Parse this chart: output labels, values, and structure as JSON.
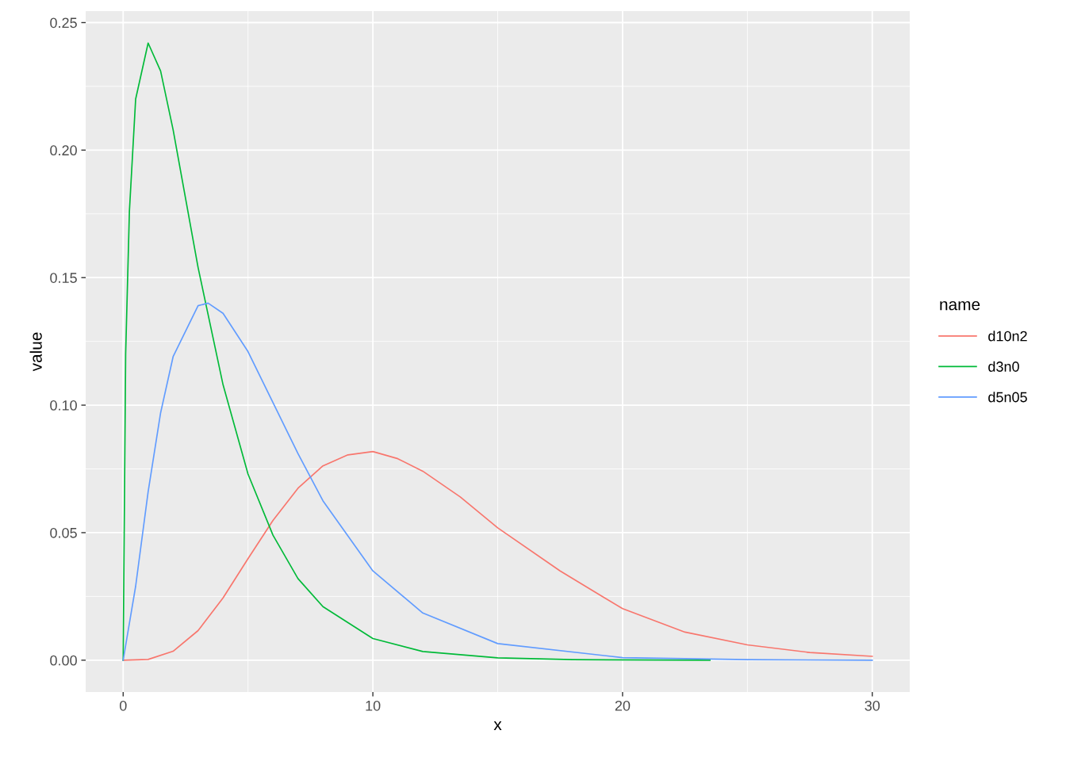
{
  "chart_data": {
    "type": "line",
    "xlabel": "x",
    "ylabel": "value",
    "legend_title": "name",
    "legend": "right",
    "grid": true,
    "xlim": [
      -1.5,
      31.5
    ],
    "ylim": [
      -0.0125,
      0.2545
    ],
    "xticks": [
      0,
      10,
      20,
      30
    ],
    "yticks": [
      {
        "value": 0,
        "label": "0.00"
      },
      {
        "value": 0.05,
        "label": "0.05"
      },
      {
        "value": 0.1,
        "label": "0.10"
      },
      {
        "value": 0.15,
        "label": "0.15"
      },
      {
        "value": 0.2,
        "label": "0.20"
      },
      {
        "value": 0.25,
        "label": "0.25"
      }
    ],
    "series": [
      {
        "name": "d10n2",
        "color": "#f8766d",
        "x": [
          0,
          1,
          2,
          3,
          4,
          5,
          6,
          7,
          8,
          9,
          10,
          11,
          12,
          13.5,
          15,
          17.5,
          20,
          22.5,
          25,
          27.5,
          30
        ],
        "values": [
          0,
          0.0003,
          0.0035,
          0.0116,
          0.0244,
          0.0398,
          0.0548,
          0.0674,
          0.0762,
          0.0805,
          0.0818,
          0.079,
          0.0741,
          0.064,
          0.0519,
          0.035,
          0.0202,
          0.011,
          0.006,
          0.003,
          0.0015
        ]
      },
      {
        "name": "d3n0",
        "color": "#00ba38",
        "x": [
          0,
          0.1,
          0.25,
          0.5,
          1,
          1.5,
          2,
          3,
          4,
          5,
          6,
          7,
          8,
          10,
          12,
          15,
          18,
          23.5
        ],
        "values": [
          0,
          0.12,
          0.176,
          0.22,
          0.242,
          0.231,
          0.208,
          0.154,
          0.108,
          0.073,
          0.049,
          0.032,
          0.021,
          0.0085,
          0.0034,
          0.0009,
          0.0002,
          0
        ]
      },
      {
        "name": "d5n05",
        "color": "#619cff",
        "x": [
          0,
          0.5,
          1,
          1.5,
          2,
          3,
          3.4,
          4,
          5,
          6,
          7,
          8,
          10,
          12,
          15,
          20,
          25,
          30
        ],
        "values": [
          0,
          0.029,
          0.066,
          0.097,
          0.119,
          0.139,
          0.14,
          0.136,
          0.121,
          0.101,
          0.081,
          0.0625,
          0.035,
          0.0185,
          0.0065,
          0.001,
          0.0002,
          0
        ]
      }
    ]
  }
}
